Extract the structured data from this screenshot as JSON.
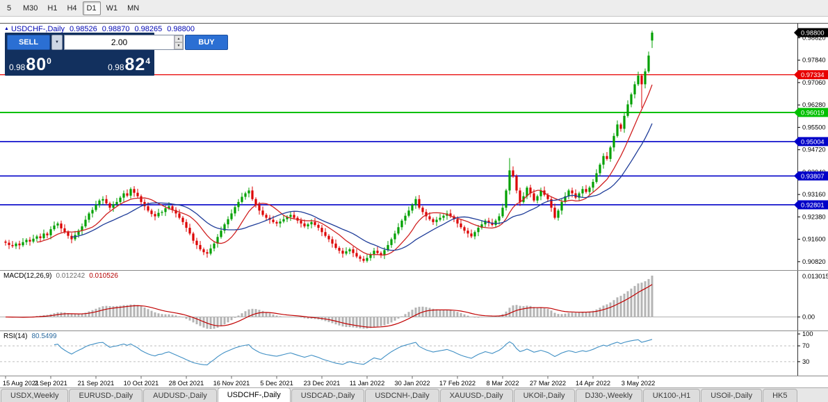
{
  "toolbar": {
    "timeframes": [
      "5",
      "M30",
      "H1",
      "H4",
      "D1",
      "W1",
      "MN"
    ],
    "active": "D1"
  },
  "title": {
    "marker": "▲",
    "symbol_line": "USDCHF-,Daily",
    "open": "0.98526",
    "high": "0.98870",
    "low": "0.98265",
    "close": "0.98800"
  },
  "trade_panel": {
    "sell_label": "SELL",
    "buy_label": "BUY",
    "lot_value": "2.00",
    "dropdown_icon": "▼",
    "spin_up": "▲",
    "spin_down": "▼",
    "sell_price": {
      "base": "0.98",
      "big": "80",
      "sup": "0"
    },
    "buy_price": {
      "base": "0.98",
      "big": "82",
      "sup": "4"
    }
  },
  "indicators": {
    "macd_label": "MACD(12,26,9)",
    "macd_value": "0.012242",
    "macd_signal_value": "0.010526",
    "rsi_label": "RSI(14)",
    "rsi_value": "80.5499"
  },
  "chart_data": {
    "type": "candlestick",
    "symbol": "USDCHF-",
    "timeframe": "Daily",
    "ohlc_display": {
      "open": 0.98526,
      "high": 0.9887,
      "low": 0.98265,
      "close": 0.988
    },
    "colors": {
      "up": "#00A000",
      "down": "#DD0000"
    },
    "price_axis_ticks": [
      "0.98620",
      "0.97840",
      "0.97060",
      "0.96280",
      "0.95500",
      "0.94720",
      "0.93940",
      "0.93160",
      "0.92380",
      "0.91600",
      "0.90820"
    ],
    "current_price_marker": {
      "price": 0.988,
      "label": "0.98800",
      "color": "#000000"
    },
    "price_lines": [
      {
        "price": 0.97334,
        "label": "0.97334",
        "color": "#E80000",
        "width": 1.2
      },
      {
        "price": 0.96019,
        "label": "0.96019",
        "color": "#00C000",
        "width": 2
      },
      {
        "price": 0.95004,
        "label": "0.95004",
        "color": "#0000C8",
        "width": 1.6
      },
      {
        "price": 0.93807,
        "label": "0.93807",
        "color": "#0000C8",
        "width": 1.6
      },
      {
        "price": 0.92801,
        "label": "0.92801",
        "color": "#0000C8",
        "width": 1.6
      }
    ],
    "moving_averages": [
      {
        "period": 10,
        "color": "#D02020"
      },
      {
        "period": 20,
        "color": "#1F3D99"
      }
    ],
    "candles": {
      "first_open": 0.9152,
      "closes": [
        0.9148,
        0.914,
        0.9136,
        0.9145,
        0.9139,
        0.915,
        0.9158,
        0.9152,
        0.9162,
        0.917,
        0.9164,
        0.918,
        0.9174,
        0.9195,
        0.9208,
        0.9215,
        0.9198,
        0.9185,
        0.9172,
        0.916,
        0.9175,
        0.919,
        0.9205,
        0.9228,
        0.925,
        0.9262,
        0.928,
        0.9295,
        0.93,
        0.9285,
        0.927,
        0.9282,
        0.929,
        0.9305,
        0.932,
        0.9312,
        0.9335,
        0.9322,
        0.931,
        0.929,
        0.9275,
        0.926,
        0.9248,
        0.924,
        0.9252,
        0.9255,
        0.9268,
        0.9275,
        0.9262,
        0.925,
        0.9235,
        0.922,
        0.92,
        0.918,
        0.9155,
        0.914,
        0.9125,
        0.9115,
        0.911,
        0.9128,
        0.9145,
        0.9168,
        0.919,
        0.9212,
        0.923,
        0.925,
        0.9272,
        0.929,
        0.9308,
        0.932,
        0.933,
        0.93,
        0.928,
        0.926,
        0.9245,
        0.9235,
        0.9228,
        0.922,
        0.9215,
        0.9222,
        0.923,
        0.9238,
        0.9245,
        0.9235,
        0.9225,
        0.9215,
        0.9205,
        0.9212,
        0.922,
        0.921,
        0.92,
        0.9185,
        0.9172,
        0.916,
        0.9145,
        0.913,
        0.912,
        0.911,
        0.9118,
        0.9125,
        0.9112,
        0.91,
        0.9092,
        0.9085,
        0.9095,
        0.9108,
        0.912,
        0.9112,
        0.9105,
        0.9122,
        0.914,
        0.916,
        0.918,
        0.9202,
        0.9225,
        0.9242,
        0.926,
        0.928,
        0.93,
        0.927,
        0.9255,
        0.924,
        0.923,
        0.922,
        0.9228,
        0.9235,
        0.9242,
        0.925,
        0.924,
        0.923,
        0.9215,
        0.9202,
        0.919,
        0.918,
        0.917,
        0.9185,
        0.92,
        0.9212,
        0.9225,
        0.9218,
        0.921,
        0.9225,
        0.924,
        0.927,
        0.933,
        0.94,
        0.938,
        0.933,
        0.929,
        0.931,
        0.934,
        0.932,
        0.9295,
        0.931,
        0.933,
        0.9315,
        0.93,
        0.927,
        0.9235,
        0.926,
        0.929,
        0.931,
        0.933,
        0.932,
        0.9305,
        0.932,
        0.9335,
        0.9325,
        0.934,
        0.936,
        0.939,
        0.942,
        0.945,
        0.944,
        0.948,
        0.952,
        0.956,
        0.9545,
        0.959,
        0.963,
        0.9665,
        0.97,
        0.973,
        0.97,
        0.9745,
        0.98,
        0.988
      ],
      "overrides": {
        "58": {
          "l": 0.9096
        },
        "103": {
          "l": 0.9078
        },
        "145": {
          "h": 0.9443
        },
        "183": {
          "l": 0.9618
        },
        "186": {
          "o": 0.98526,
          "h": 0.9887,
          "l": 0.98265,
          "c": 0.988
        }
      }
    },
    "time_labels": {
      "step": 13,
      "labels": [
        "15 Aug 2021",
        "2 Sep 2021",
        "21 Sep 2021",
        "10 Oct 2021",
        "28 Oct 2021",
        "16 Nov 2021",
        "5 Dec 2021",
        "23 Dec 2021",
        "11 Jan 2022",
        "30 Jan 2022",
        "17 Feb 2022",
        "8 Mar 2022",
        "27 Mar 2022",
        "14 Apr 2022",
        "3 May 2022"
      ]
    },
    "macd": {
      "fast": 12,
      "slow": 26,
      "signal": 9,
      "hist_color": "#B4B4B4",
      "signal_color": "#C00000",
      "axis_top_label": "0.013015",
      "axis_zero_label": "0.00",
      "current_value": 0.012242,
      "current_signal": 0.010526
    },
    "rsi": {
      "period": 14,
      "color": "#3F8FC4",
      "levels": [
        70,
        30
      ],
      "axis_labels": [
        "100",
        "70",
        "30"
      ],
      "axis_values": [
        100,
        70,
        30
      ],
      "current_value": 80.5499
    }
  },
  "tabs": {
    "active_index": 3,
    "items": [
      "USDX,Weekly",
      "EURUSD-,Daily",
      "AUDUSD-,Daily",
      "USDCHF-,Daily",
      "USDCAD-,Daily",
      "USDCNH-,Daily",
      "XAUUSD-,Daily",
      "UKOil-,Daily",
      "DJ30-,Weekly",
      "UK100-,H1",
      "USOil-,Daily",
      "HK5"
    ]
  }
}
